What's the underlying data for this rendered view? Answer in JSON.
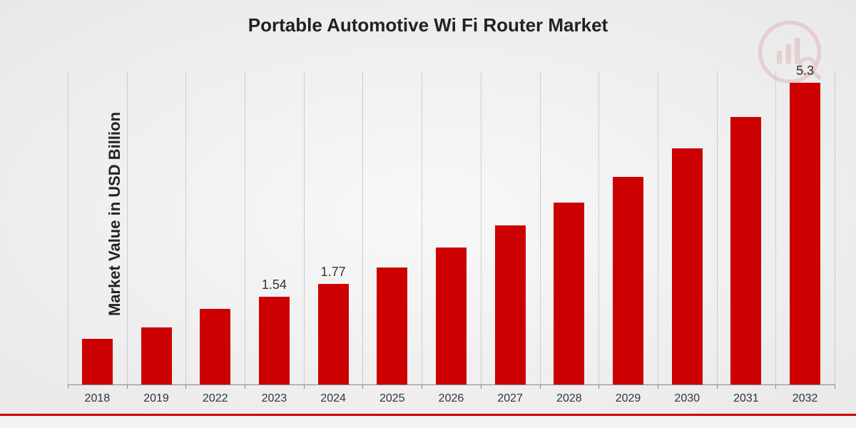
{
  "chart": {
    "type": "bar",
    "title": "Portable Automotive Wi Fi Router Market",
    "title_fontsize": 26,
    "ylabel": "Market Value in USD Billion",
    "ylabel_fontsize": 22,
    "categories": [
      "2018",
      "2019",
      "2022",
      "2023",
      "2024",
      "2025",
      "2026",
      "2027",
      "2028",
      "2029",
      "2030",
      "2031",
      "2032"
    ],
    "values": [
      0.8,
      1.0,
      1.33,
      1.54,
      1.77,
      2.05,
      2.4,
      2.8,
      3.2,
      3.65,
      4.15,
      4.7,
      5.3
    ],
    "visible_value_labels": {
      "3": "1.54",
      "4": "1.77",
      "12": "5.3"
    },
    "ylim": [
      0,
      5.5
    ],
    "bar_color": "#cc0000",
    "bar_width": 0.52,
    "grid_color": "#cccccc",
    "axis_color": "#888888",
    "background": "radial-gradient(#f8f8f8, #e8e8e8)",
    "xlabel_fontsize": 16,
    "value_label_fontsize": 18,
    "footer_accent_color": "#cc0000",
    "footer_bg_color": "#f2f2f2",
    "logo_color": "#cc0000",
    "logo_opacity": 0.12
  }
}
